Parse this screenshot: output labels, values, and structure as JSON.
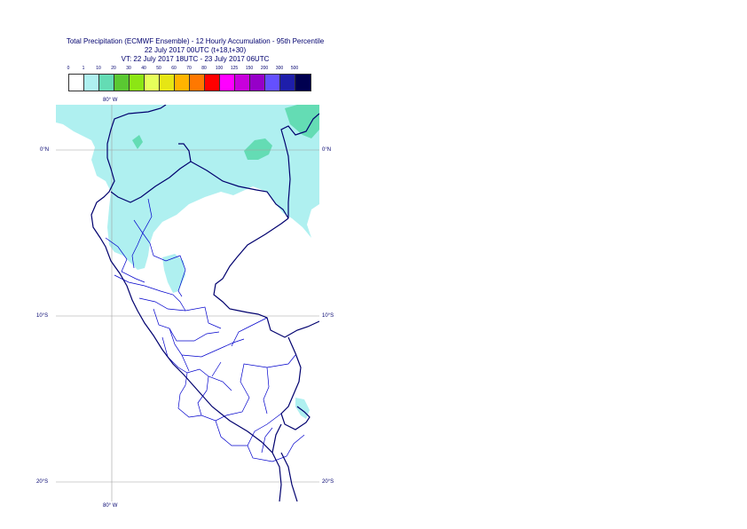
{
  "title": {
    "line1": "Total Precipitation (ECMWF Ensemble) - 12 Hourly Accumulation - 95th Percentile",
    "line2": "22 July 2017 00UTC (t+18,t+30)",
    "line3": "VT: 22 July 2017 18UTC - 23 July 2017 06UTC"
  },
  "legend": {
    "labels": [
      "0",
      "1",
      "10",
      "20",
      "30",
      "40",
      "50",
      "60",
      "70",
      "80",
      "100",
      "125",
      "150",
      "200",
      "300",
      "500"
    ],
    "colors": [
      "#ffffff",
      "#aff0f0",
      "#64dcb4",
      "#5ac832",
      "#8ce614",
      "#e6ff5a",
      "#e6e614",
      "#ffb400",
      "#ff7800",
      "#ff0000",
      "#ff00ff",
      "#c800dc",
      "#9600c8",
      "#6450ff",
      "#1e1eaa",
      "#000050"
    ]
  },
  "axes": {
    "lon_top": "80° W",
    "lon_bottom": "80° W",
    "lat_left": [
      "0°N",
      "10°S",
      "20°S"
    ],
    "lat_right": [
      "0°N",
      "10°S",
      "20°S"
    ]
  },
  "map": {
    "land_color": "#ffffff",
    "precip_light_color": "#aff0f0",
    "precip_moderate_color": "#64dcb4",
    "border_color": "#00006e",
    "region_color": "#0000cc",
    "grid_color": "#a0a0a0"
  }
}
